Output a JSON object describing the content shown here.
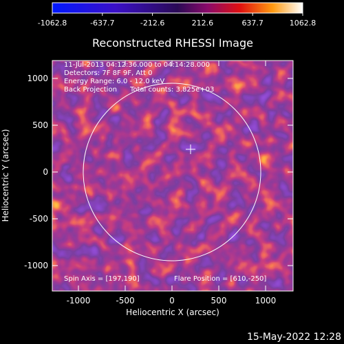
{
  "colorbar": {
    "tick_labels": [
      "-1062.8",
      "-637.7",
      "-212.6",
      "212.6",
      "637.7",
      "1062.8"
    ]
  },
  "plot": {
    "title": "Reconstructed RHESSI Image",
    "info_lines": [
      "11-Jul-2013 04:12:36.000 to 04:14:28.000",
      "Detectors: 7F 8F 9F, Att 0",
      "Energy Range: 6.0 - 12.0 keV",
      "Back Projection      Total counts: 3.825e+03"
    ],
    "spin_axis": "Spin Axis = [197,190]",
    "flare_position": "Flare Position = [610,-250]",
    "x_axis_label": "Heliocentric X (arcsec)",
    "y_axis_label": "Heliocentric Y (arcsec)",
    "x_ticks": [
      "-1000",
      "-500",
      "0",
      "500",
      "1000"
    ],
    "y_ticks": [
      "1000",
      "500",
      "0",
      "-500",
      "-1000"
    ]
  },
  "footer": {
    "timestamp": "15-May-2022 12:28"
  },
  "colors": {
    "background": "#000000",
    "negative": "#0000ff",
    "zero": "#2a0a55",
    "positive": "#ff0000",
    "max": "#ffffff"
  }
}
